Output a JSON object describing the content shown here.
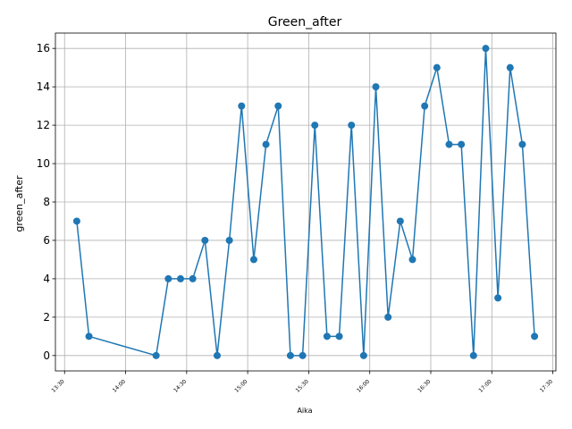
{
  "chart_data": {
    "type": "line",
    "title": "Green_after",
    "xlabel": "Aika",
    "ylabel": "green_after",
    "grid": true,
    "x_ticks": [
      "13:30",
      "14:00",
      "14:30",
      "15:00",
      "15:30",
      "16:00",
      "16:30",
      "17:00",
      "17:30"
    ],
    "y_ticks": [
      "0",
      "2",
      "4",
      "6",
      "8",
      "10",
      "12",
      "14",
      "16"
    ],
    "series": [
      {
        "color": "#1f77b4",
        "x": [
          "13:36",
          "13:42",
          "14:15",
          "14:21",
          "14:27",
          "14:33",
          "14:39",
          "14:45",
          "14:51",
          "14:57",
          "15:03",
          "15:09",
          "15:15",
          "15:21",
          "15:27",
          "15:33",
          "15:39",
          "15:45",
          "15:51",
          "15:57",
          "16:03",
          "16:09",
          "16:15",
          "16:21",
          "16:27",
          "16:33",
          "16:39",
          "16:45",
          "16:51",
          "16:57",
          "17:03",
          "17:09",
          "17:15",
          "17:21"
        ],
        "values": [
          7,
          1,
          0,
          4,
          4,
          4,
          6,
          0,
          6,
          13,
          5,
          11,
          13,
          0,
          0,
          12,
          1,
          1,
          12,
          0,
          14,
          2,
          7,
          5,
          13,
          15,
          11,
          11,
          0,
          16,
          3,
          15,
          11,
          1
        ]
      }
    ]
  }
}
